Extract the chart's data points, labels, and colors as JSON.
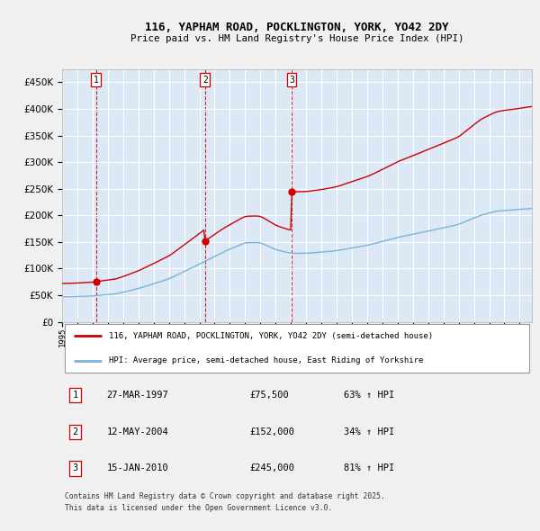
{
  "title1": "116, YAPHAM ROAD, POCKLINGTON, YORK, YO42 2DY",
  "title2": "Price paid vs. HM Land Registry's House Price Index (HPI)",
  "legend_line1": "116, YAPHAM ROAD, POCKLINGTON, YORK, YO42 2DY (semi-detached house)",
  "legend_line2": "HPI: Average price, semi-detached house, East Riding of Yorkshire",
  "purchases": [
    {
      "num": 1,
      "date": "27-MAR-1997",
      "price": 75500,
      "pct": "63%",
      "dir": "↑"
    },
    {
      "num": 2,
      "date": "12-MAY-2004",
      "price": 152000,
      "pct": "34%",
      "dir": "↑"
    },
    {
      "num": 3,
      "date": "15-JAN-2010",
      "price": 245000,
      "pct": "81%",
      "dir": "↑"
    }
  ],
  "purchase_years": [
    1997.23,
    2004.37,
    2010.04
  ],
  "purchase_prices": [
    75500,
    152000,
    245000
  ],
  "footnote": "Contains HM Land Registry data © Crown copyright and database right 2025.\nThis data is licensed under the Open Government Licence v3.0.",
  "hpi_color": "#7ab3d8",
  "price_color": "#cc0000",
  "vline_color": "#cc0000",
  "chart_bg_color": "#dce8f5",
  "fig_bg_color": "#f0f0f0",
  "grid_color": "#ffffff",
  "ylim": [
    0,
    475000
  ],
  "xlim_start": 1995.0,
  "xlim_end": 2025.8
}
